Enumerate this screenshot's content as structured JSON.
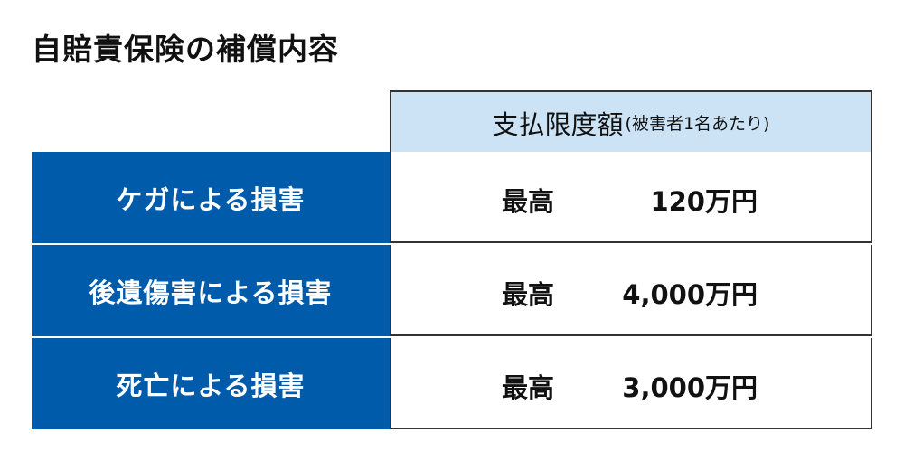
{
  "title": "自賠責保険の補償内容",
  "header": {
    "main": "支払限度額",
    "sub": "(被害者1名あたり)"
  },
  "rows": [
    {
      "label": "ケガによる損害",
      "prefix": "最高",
      "amount": "120万円"
    },
    {
      "label": "後遺傷害による損害",
      "prefix": "最高",
      "amount": "4,000万円"
    },
    {
      "label": "死亡による損害",
      "prefix": "最高",
      "amount": "3,000万円"
    }
  ],
  "colors": {
    "label_bg": "#005bab",
    "header_bg": "#cbe3f5"
  }
}
